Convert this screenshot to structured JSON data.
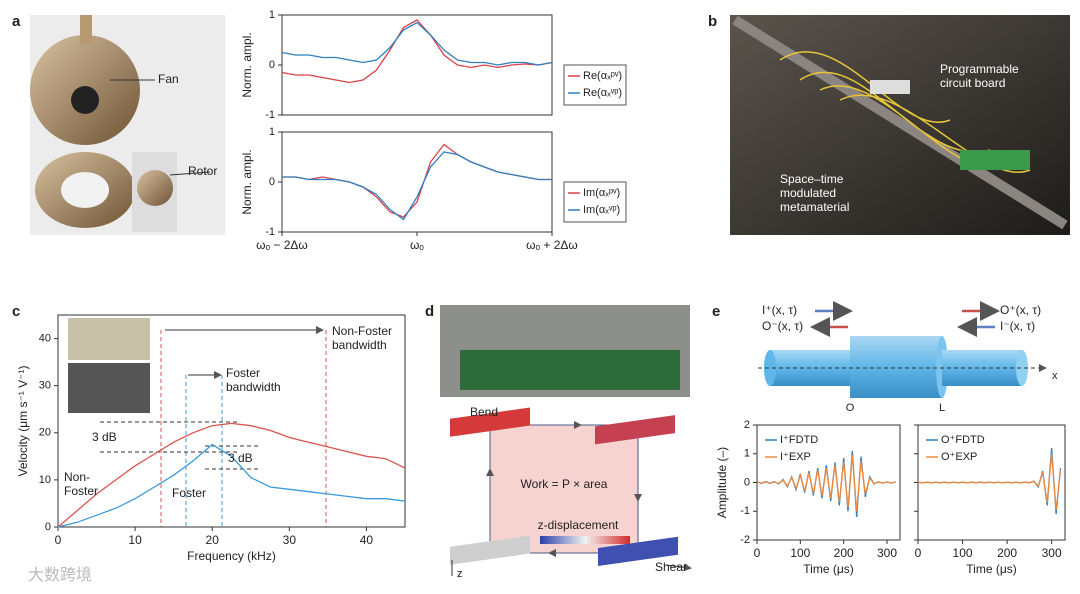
{
  "panel_labels": [
    "a",
    "b",
    "c",
    "d",
    "e"
  ],
  "photo_a": {
    "labels": [
      "Fan",
      "Rotor"
    ]
  },
  "photo_b": {
    "labels": [
      "Programmable circuit board",
      "Space–time modulated metamaterial"
    ]
  },
  "diagram_d": {
    "labels": [
      "Bend",
      "Shear",
      "Work = P × area",
      "z-displacement",
      "z"
    ]
  },
  "diagram_e": {
    "labels": [
      "I⁺(x, τ)",
      "O⁻(x, τ)",
      "O⁺(x, τ)",
      "I⁻(x, τ)",
      "O",
      "L",
      "x"
    ]
  },
  "watermark": "大数跨境",
  "chart_data": [
    {
      "type": "line",
      "ylabel": "Norm. ampl.",
      "ylim": [
        -1,
        1
      ],
      "yticks": [
        -1,
        0,
        1
      ],
      "xlim": [
        -2,
        2
      ],
      "legend": "lower right",
      "x": [
        -2,
        -1.8,
        -1.6,
        -1.4,
        -1.2,
        -1,
        -0.8,
        -0.6,
        -0.4,
        -0.2,
        0,
        0.2,
        0.4,
        0.6,
        0.8,
        1,
        1.2,
        1.4,
        1.6,
        1.8,
        2
      ],
      "series": [
        {
          "name": "Re(αₓᵖᵛ)",
          "color": "#d9434b",
          "values": [
            -0.15,
            -0.2,
            -0.2,
            -0.25,
            -0.3,
            -0.35,
            -0.3,
            -0.1,
            0.3,
            0.75,
            0.9,
            0.6,
            0.2,
            0,
            -0.05,
            0,
            -0.05,
            0,
            0.02,
            0,
            0.05
          ]
        },
        {
          "name": "Re(αₓᵛᵖ)",
          "color": "#2f7fc1",
          "values": [
            0.25,
            0.2,
            0.2,
            0.15,
            0.15,
            0.1,
            0.05,
            0.1,
            0.35,
            0.7,
            0.85,
            0.6,
            0.3,
            0.1,
            0.05,
            0.05,
            0,
            0.05,
            0.05,
            0,
            0.05
          ]
        }
      ]
    },
    {
      "type": "line",
      "ylabel": "Norm. ampl.",
      "ylim": [
        -1,
        1
      ],
      "yticks": [
        -1,
        0,
        1
      ],
      "xlim": [
        -2,
        2
      ],
      "legend": "lower right",
      "xticks": [
        {
          "value": -2,
          "label": "ωₒ − 2Δω"
        },
        {
          "value": 0,
          "label": "ωₒ"
        },
        {
          "value": 2,
          "label": "ωₒ + 2Δω"
        }
      ],
      "x": [
        -2,
        -1.8,
        -1.6,
        -1.4,
        -1.2,
        -1,
        -0.8,
        -0.6,
        -0.4,
        -0.2,
        0,
        0.2,
        0.4,
        0.6,
        0.8,
        1,
        1.2,
        1.4,
        1.6,
        1.8,
        2
      ],
      "series": [
        {
          "name": "Im(αₓᵖᵛ)",
          "color": "#d9434b",
          "values": [
            0.1,
            0.1,
            0.05,
            0.1,
            0.05,
            0,
            -0.1,
            -0.3,
            -0.6,
            -0.7,
            -0.4,
            0.4,
            0.75,
            0.55,
            0.4,
            0.3,
            0.2,
            0.15,
            0.1,
            0.05,
            0.05
          ]
        },
        {
          "name": "Im(αₓᵛᵖ)",
          "color": "#2f7fc1",
          "values": [
            0.1,
            0.1,
            0.05,
            0.05,
            0.05,
            0,
            -0.1,
            -0.25,
            -0.55,
            -0.75,
            -0.3,
            0.3,
            0.6,
            0.55,
            0.4,
            0.3,
            0.2,
            0.15,
            0.1,
            0.05,
            0.05
          ]
        }
      ]
    },
    {
      "type": "line",
      "xlabel": "Frequency (kHz)",
      "ylabel": "Velocity (μm s⁻¹ V⁻¹)",
      "xlim": [
        0,
        45
      ],
      "xticks": [
        0,
        10,
        20,
        30,
        40
      ],
      "ylim": [
        0,
        45
      ],
      "yticks": [
        0,
        10,
        20,
        30,
        40
      ],
      "annotations": [
        "Non-Foster bandwidth",
        "Foster bandwidth",
        "3 dB",
        "3 dB"
      ],
      "x": [
        0,
        2.5,
        5,
        7.5,
        10,
        12.5,
        15,
        17.5,
        20,
        22.5,
        25,
        27.5,
        30,
        32.5,
        35,
        37.5,
        40,
        42.5,
        45
      ],
      "series": [
        {
          "name": "Non-Foster",
          "color": "#d9534f",
          "values": [
            0,
            3.5,
            7,
            10,
            13,
            15.5,
            18,
            20,
            21.5,
            22,
            21.5,
            20.5,
            19,
            18,
            17,
            16,
            15,
            14.5,
            12.5
          ]
        },
        {
          "name": "Foster",
          "color": "#3a9ad9",
          "values": [
            0,
            1,
            2.5,
            4,
            6,
            8.5,
            11,
            14,
            17.5,
            15,
            10.5,
            8.5,
            8,
            7.5,
            7,
            6.5,
            6,
            6,
            5.5
          ]
        }
      ]
    },
    {
      "type": "line",
      "xlabel": "Time (μs)",
      "ylabel": "Amplitude (–)",
      "xlim": [
        0,
        330
      ],
      "xticks": [
        0,
        100,
        200,
        300
      ],
      "ylim": [
        -2,
        2
      ],
      "yticks": [
        -2,
        -1,
        0,
        1,
        2
      ],
      "legend": "upper left",
      "x": [
        0,
        10,
        20,
        30,
        40,
        50,
        60,
        70,
        80,
        90,
        100,
        110,
        120,
        130,
        140,
        150,
        160,
        170,
        180,
        190,
        200,
        210,
        220,
        230,
        240,
        250,
        260,
        270,
        280,
        290,
        300,
        310,
        320
      ],
      "series": [
        {
          "name": "I⁺FDTD",
          "color": "#2f7fc1",
          "values": [
            0.03,
            -0.03,
            0.03,
            -0.03,
            0.03,
            -0.05,
            0.1,
            -0.15,
            0.2,
            -0.25,
            0.3,
            -0.35,
            0.4,
            -0.45,
            0.5,
            -0.55,
            0.6,
            -0.65,
            0.7,
            -0.8,
            0.85,
            -1.0,
            1.1,
            -1.2,
            0.9,
            -0.5,
            0.2,
            -0.05,
            0.02,
            -0.02,
            0.02,
            -0.02,
            0.02
          ]
        },
        {
          "name": "I⁺EXP",
          "color": "#ef8a3c",
          "values": [
            0.02,
            -0.02,
            0.02,
            -0.02,
            0.02,
            -0.04,
            0.08,
            -0.12,
            0.17,
            -0.21,
            0.25,
            -0.3,
            0.34,
            -0.38,
            0.42,
            -0.46,
            0.5,
            -0.55,
            0.6,
            -0.68,
            0.72,
            -0.85,
            0.95,
            -1.0,
            0.75,
            -0.4,
            0.15,
            -0.04,
            0.02,
            -0.02,
            0.02,
            -0.02,
            0.02
          ]
        }
      ]
    },
    {
      "type": "line",
      "xlabel": "Time (μs)",
      "xlim": [
        0,
        330
      ],
      "xticks": [
        0,
        100,
        200,
        300
      ],
      "ylim": [
        -2,
        2
      ],
      "yticks": [
        -2,
        -1,
        0,
        1,
        2
      ],
      "legend": "upper left",
      "x": [
        0,
        10,
        20,
        30,
        40,
        50,
        60,
        70,
        80,
        90,
        100,
        110,
        120,
        130,
        140,
        150,
        160,
        170,
        180,
        190,
        200,
        210,
        220,
        230,
        240,
        250,
        260,
        270,
        280,
        290,
        300,
        310,
        320
      ],
      "series": [
        {
          "name": "O⁺FDTD",
          "color": "#2f7fc1",
          "values": [
            0.01,
            -0.01,
            0.01,
            -0.01,
            0.01,
            -0.01,
            0.01,
            -0.01,
            0.01,
            -0.01,
            0.01,
            -0.01,
            0.01,
            -0.01,
            0.01,
            -0.01,
            0.01,
            -0.01,
            0.01,
            -0.01,
            0.01,
            -0.01,
            0.01,
            -0.01,
            0.01,
            -0.01,
            0.05,
            -0.15,
            0.4,
            -0.8,
            1.2,
            -1.1,
            0.5
          ]
        },
        {
          "name": "O⁺EXP",
          "color": "#ef8a3c",
          "values": [
            0.01,
            -0.01,
            0.01,
            -0.01,
            0.01,
            -0.01,
            0.01,
            -0.01,
            0.01,
            -0.01,
            0.01,
            -0.01,
            0.01,
            -0.01,
            0.01,
            -0.01,
            0.01,
            -0.01,
            0.01,
            -0.01,
            0.01,
            -0.01,
            0.01,
            -0.01,
            0.01,
            -0.01,
            0.04,
            -0.12,
            0.35,
            -0.7,
            1.0,
            -0.95,
            0.45
          ]
        }
      ]
    }
  ]
}
